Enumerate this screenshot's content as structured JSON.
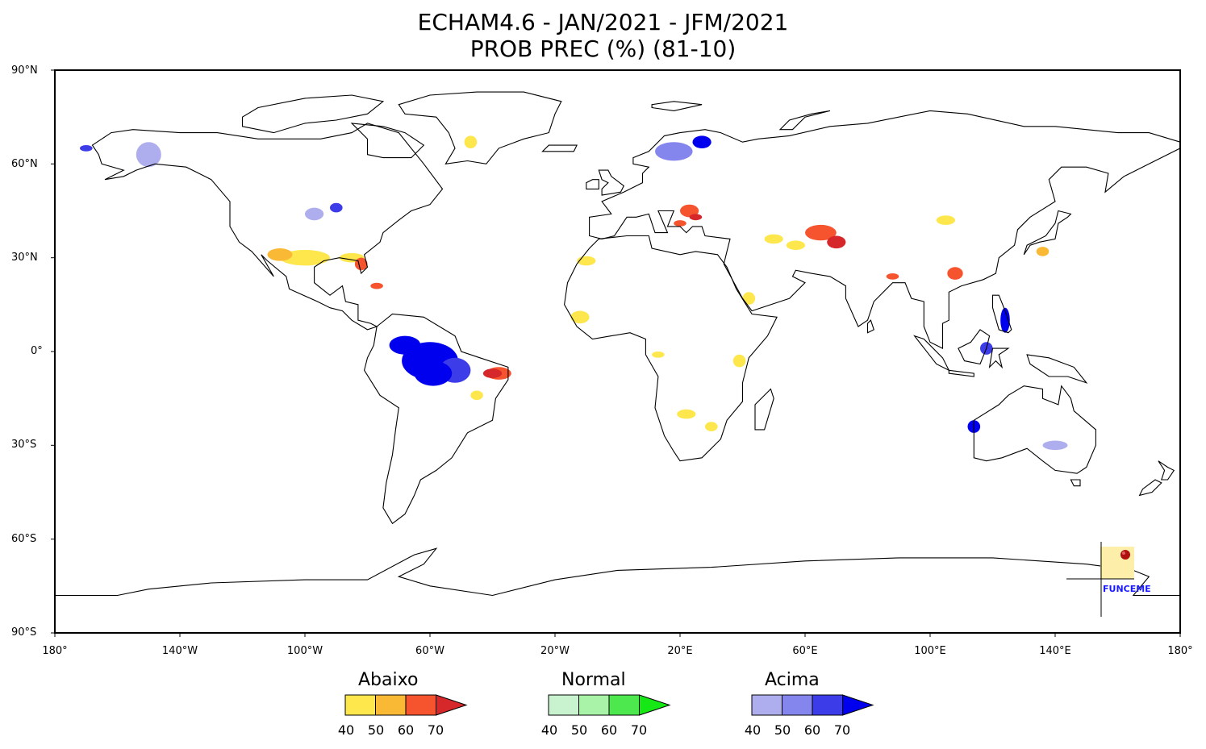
{
  "title": {
    "line1": "ECHAM4.6 - JAN/2021 - JFM/2021",
    "line2": "PROB PREC (%) (81-10)"
  },
  "map": {
    "projection": "equirectangular",
    "lat_labels": [
      "90°N",
      "60°N",
      "30°N",
      "0°",
      "30°S",
      "60°S",
      "90°S"
    ],
    "lon_labels": [
      "180°",
      "140°W",
      "100°W",
      "60°W",
      "20°W",
      "20°E",
      "60°E",
      "100°E",
      "140°E",
      "180°"
    ],
    "colors": {
      "abaixo": [
        "#fde74c",
        "#f9b934",
        "#f5542e",
        "#d6282a"
      ],
      "normal": [
        "#c9f3cf",
        "#a8f3a8",
        "#4de84d",
        "#15e815"
      ],
      "acima": [
        "#aeaeee",
        "#8585ee",
        "#3c3ce8",
        "#0000ee"
      ],
      "coast": "#000000"
    },
    "regions": [
      {
        "name": "Amazon",
        "category": "acima",
        "level": 4
      },
      {
        "name": "Northeast Brazil",
        "category": "abaixo",
        "level": 3
      },
      {
        "name": "Southern USA",
        "category": "abaixo",
        "level": 2
      },
      {
        "name": "Florida",
        "category": "abaixo",
        "level": 3
      },
      {
        "name": "Scandinavia",
        "category": "acima",
        "level": 4
      },
      {
        "name": "Eastern Europe",
        "category": "abaixo",
        "level": 3
      },
      {
        "name": "Central Asia",
        "category": "abaixo",
        "level": 3
      },
      {
        "name": "Southern China",
        "category": "abaixo",
        "level": 3
      },
      {
        "name": "Philippines",
        "category": "acima",
        "level": 4
      },
      {
        "name": "Western Australia",
        "category": "acima",
        "level": 4
      },
      {
        "name": "Alaska",
        "category": "acima",
        "level": 1
      }
    ]
  },
  "legend": [
    {
      "label": "Abaixo",
      "colors": [
        "#fde74c",
        "#f9b934",
        "#f5542e",
        "#d6282a"
      ],
      "ticks": [
        "40",
        "50",
        "60",
        "70"
      ]
    },
    {
      "label": "Normal",
      "colors": [
        "#c9f3cf",
        "#a8f3a8",
        "#4de84d",
        "#15e815"
      ],
      "ticks": [
        "40",
        "50",
        "60",
        "70"
      ]
    },
    {
      "label": "Acima",
      "colors": [
        "#aeaeee",
        "#8585ee",
        "#3c3ce8",
        "#0000ee"
      ],
      "ticks": [
        "40",
        "50",
        "60",
        "70"
      ]
    }
  ],
  "logo": {
    "text": "FUNCEME",
    "icon": "funceme-logo-icon"
  }
}
